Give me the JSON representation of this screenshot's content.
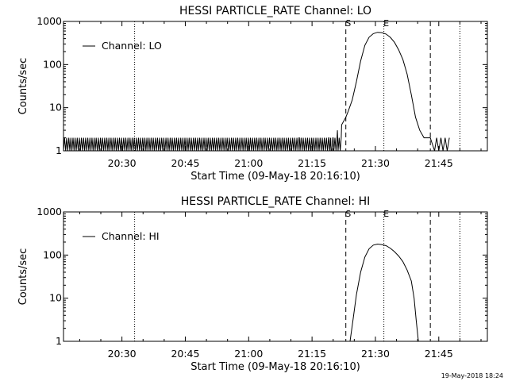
{
  "chart_data": [
    {
      "type": "line",
      "title": "HESSI PARTICLE_RATE Channel: LO",
      "xlabel": "Start Time (09-May-18 20:16:10)",
      "ylabel": "Counts/sec",
      "yscale": "log",
      "ylim": [
        1,
        1000
      ],
      "xlim": [
        "20:16:10",
        "21:56:30"
      ],
      "x_ticks": [
        "20:30",
        "20:45",
        "21:00",
        "21:15",
        "21:30",
        "21:45"
      ],
      "y_ticks": [
        "1",
        "10",
        "100",
        "1000"
      ],
      "legend": {
        "placement": "top-left",
        "entries": [
          "Channel: LO"
        ]
      },
      "vertical_lines": [
        {
          "x": "20:33:00",
          "style": "dotted",
          "label": ""
        },
        {
          "x": "21:23:00",
          "style": "dashed",
          "label": "S"
        },
        {
          "x": "21:32:00",
          "style": "dotted",
          "label": "E"
        },
        {
          "x": "21:43:00",
          "style": "dashed",
          "label": ""
        },
        {
          "x": "21:50:00",
          "style": "dotted",
          "label": ""
        }
      ],
      "series": [
        {
          "name": "Channel: LO",
          "baseline": {
            "from": "20:16:10",
            "to": "21:22:00",
            "low": 1,
            "high": 2,
            "period_min": 0.5
          },
          "points": [
            [
              "21:12:00",
              2
            ],
            [
              "21:19:00",
              2
            ],
            [
              "21:19:30",
              1
            ],
            [
              "21:20:00",
              2
            ],
            [
              "21:21:00",
              3
            ],
            [
              "21:22:00",
              4
            ],
            [
              "21:23:00",
              6
            ],
            [
              "21:23:30",
              8
            ],
            [
              "21:24:30",
              15
            ],
            [
              "21:25:30",
              40
            ],
            [
              "21:26:30",
              120
            ],
            [
              "21:27:30",
              280
            ],
            [
              "21:28:30",
              430
            ],
            [
              "21:29:30",
              520
            ],
            [
              "21:30:30",
              560
            ],
            [
              "21:31:30",
              550
            ],
            [
              "21:32:30",
              510
            ],
            [
              "21:33:30",
              430
            ],
            [
              "21:34:30",
              330
            ],
            [
              "21:35:30",
              220
            ],
            [
              "21:36:30",
              130
            ],
            [
              "21:37:30",
              60
            ],
            [
              "21:38:30",
              20
            ],
            [
              "21:39:30",
              6
            ],
            [
              "21:40:30",
              3
            ],
            [
              "21:41:30",
              2
            ],
            [
              "21:43:00",
              2
            ],
            [
              "21:44:00",
              1
            ],
            [
              "21:44:30",
              2
            ],
            [
              "21:45:00",
              1
            ],
            [
              "21:45:30",
              2
            ],
            [
              "21:46:00",
              1
            ],
            [
              "21:46:30",
              2
            ],
            [
              "21:47:00",
              1
            ],
            [
              "21:47:30",
              2
            ]
          ]
        }
      ]
    },
    {
      "type": "line",
      "title": "HESSI PARTICLE_RATE Channel: HI",
      "xlabel": "Start Time (09-May-18 20:16:10)",
      "ylabel": "Counts/sec",
      "yscale": "log",
      "ylim": [
        1,
        1000
      ],
      "xlim": [
        "20:16:10",
        "21:56:30"
      ],
      "x_ticks": [
        "20:30",
        "20:45",
        "21:00",
        "21:15",
        "21:30",
        "21:45"
      ],
      "y_ticks": [
        "1",
        "10",
        "100",
        "1000"
      ],
      "legend": {
        "placement": "top-left",
        "entries": [
          "Channel: HI"
        ]
      },
      "vertical_lines": [
        {
          "x": "20:33:00",
          "style": "dotted",
          "label": ""
        },
        {
          "x": "21:23:00",
          "style": "dashed",
          "label": "S"
        },
        {
          "x": "21:32:00",
          "style": "dotted",
          "label": "E"
        },
        {
          "x": "21:43:00",
          "style": "dashed",
          "label": ""
        },
        {
          "x": "21:50:00",
          "style": "dotted",
          "label": ""
        }
      ],
      "series": [
        {
          "name": "Channel: HI",
          "points": [
            [
              "21:24:00",
              1
            ],
            [
              "21:24:40",
              3
            ],
            [
              "21:25:30",
              12
            ],
            [
              "21:26:30",
              40
            ],
            [
              "21:27:30",
              90
            ],
            [
              "21:28:30",
              140
            ],
            [
              "21:29:30",
              170
            ],
            [
              "21:30:30",
              180
            ],
            [
              "21:31:30",
              175
            ],
            [
              "21:32:30",
              165
            ],
            [
              "21:33:30",
              145
            ],
            [
              "21:34:30",
              120
            ],
            [
              "21:35:30",
              95
            ],
            [
              "21:36:30",
              70
            ],
            [
              "21:37:30",
              45
            ],
            [
              "21:38:30",
              25
            ],
            [
              "21:39:10",
              10
            ],
            [
              "21:39:40",
              3
            ],
            [
              "21:40:10",
              1
            ]
          ]
        }
      ]
    }
  ],
  "footer_timestamp": "19-May-2018 18:24"
}
